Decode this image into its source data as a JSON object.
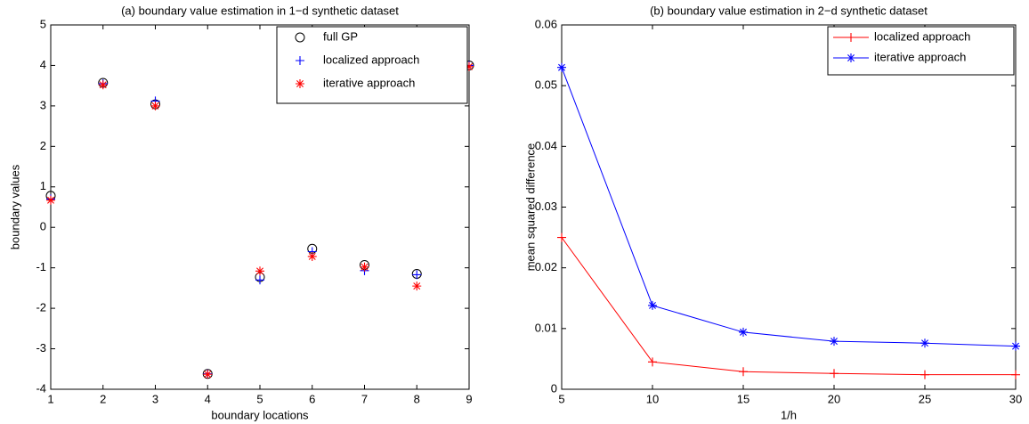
{
  "chart_data": [
    {
      "type": "scatter",
      "title": "(a) boundary value estimation in 1−d synthetic dataset",
      "xlabel": "boundary locations",
      "ylabel": "boundary values",
      "x": [
        1,
        2,
        3,
        4,
        5,
        6,
        7,
        8,
        9
      ],
      "xlim": [
        1,
        9
      ],
      "ylim": [
        -4,
        5
      ],
      "xticks": [
        1,
        2,
        3,
        4,
        5,
        6,
        7,
        8,
        9
      ],
      "yticks": [
        -4,
        -3,
        -2,
        -1,
        0,
        1,
        2,
        3,
        4,
        5
      ],
      "legend": "upper right",
      "series": [
        {
          "name": "full GP",
          "color": "#000000",
          "marker": "o",
          "values": [
            0.78,
            3.57,
            3.04,
            -3.62,
            -1.23,
            -0.53,
            -0.93,
            -1.15,
            4.0
          ]
        },
        {
          "name": "localized approach",
          "color": "#0000ff",
          "marker": "+",
          "values": [
            0.7,
            3.55,
            3.12,
            -3.62,
            -1.3,
            -0.6,
            -1.07,
            -1.17,
            4.0
          ]
        },
        {
          "name": "iterative approach",
          "color": "#ff0000",
          "marker": "*",
          "values": [
            0.67,
            3.52,
            3.0,
            -3.63,
            -1.08,
            -0.72,
            -0.98,
            -1.45,
            3.97
          ]
        }
      ]
    },
    {
      "type": "line",
      "title": "(b) boundary value estimation in 2−d synthetic dataset",
      "xlabel": "1/h",
      "ylabel": "mean squared difference",
      "x": [
        5,
        10,
        15,
        20,
        25,
        30
      ],
      "xlim": [
        5,
        30
      ],
      "ylim": [
        0,
        0.06
      ],
      "xticks": [
        5,
        10,
        15,
        20,
        25,
        30
      ],
      "yticks": [
        0,
        0.01,
        0.02,
        0.03,
        0.04,
        0.05,
        0.06
      ],
      "legend": "upper right",
      "series": [
        {
          "name": "localized approach",
          "color": "#ff0000",
          "marker": "+",
          "values": [
            0.025,
            0.0045,
            0.0029,
            0.0026,
            0.0024,
            0.0024
          ]
        },
        {
          "name": "iterative approach",
          "color": "#0000ff",
          "marker": "*",
          "values": [
            0.053,
            0.0138,
            0.0094,
            0.0079,
            0.0076,
            0.0071
          ]
        }
      ]
    }
  ]
}
